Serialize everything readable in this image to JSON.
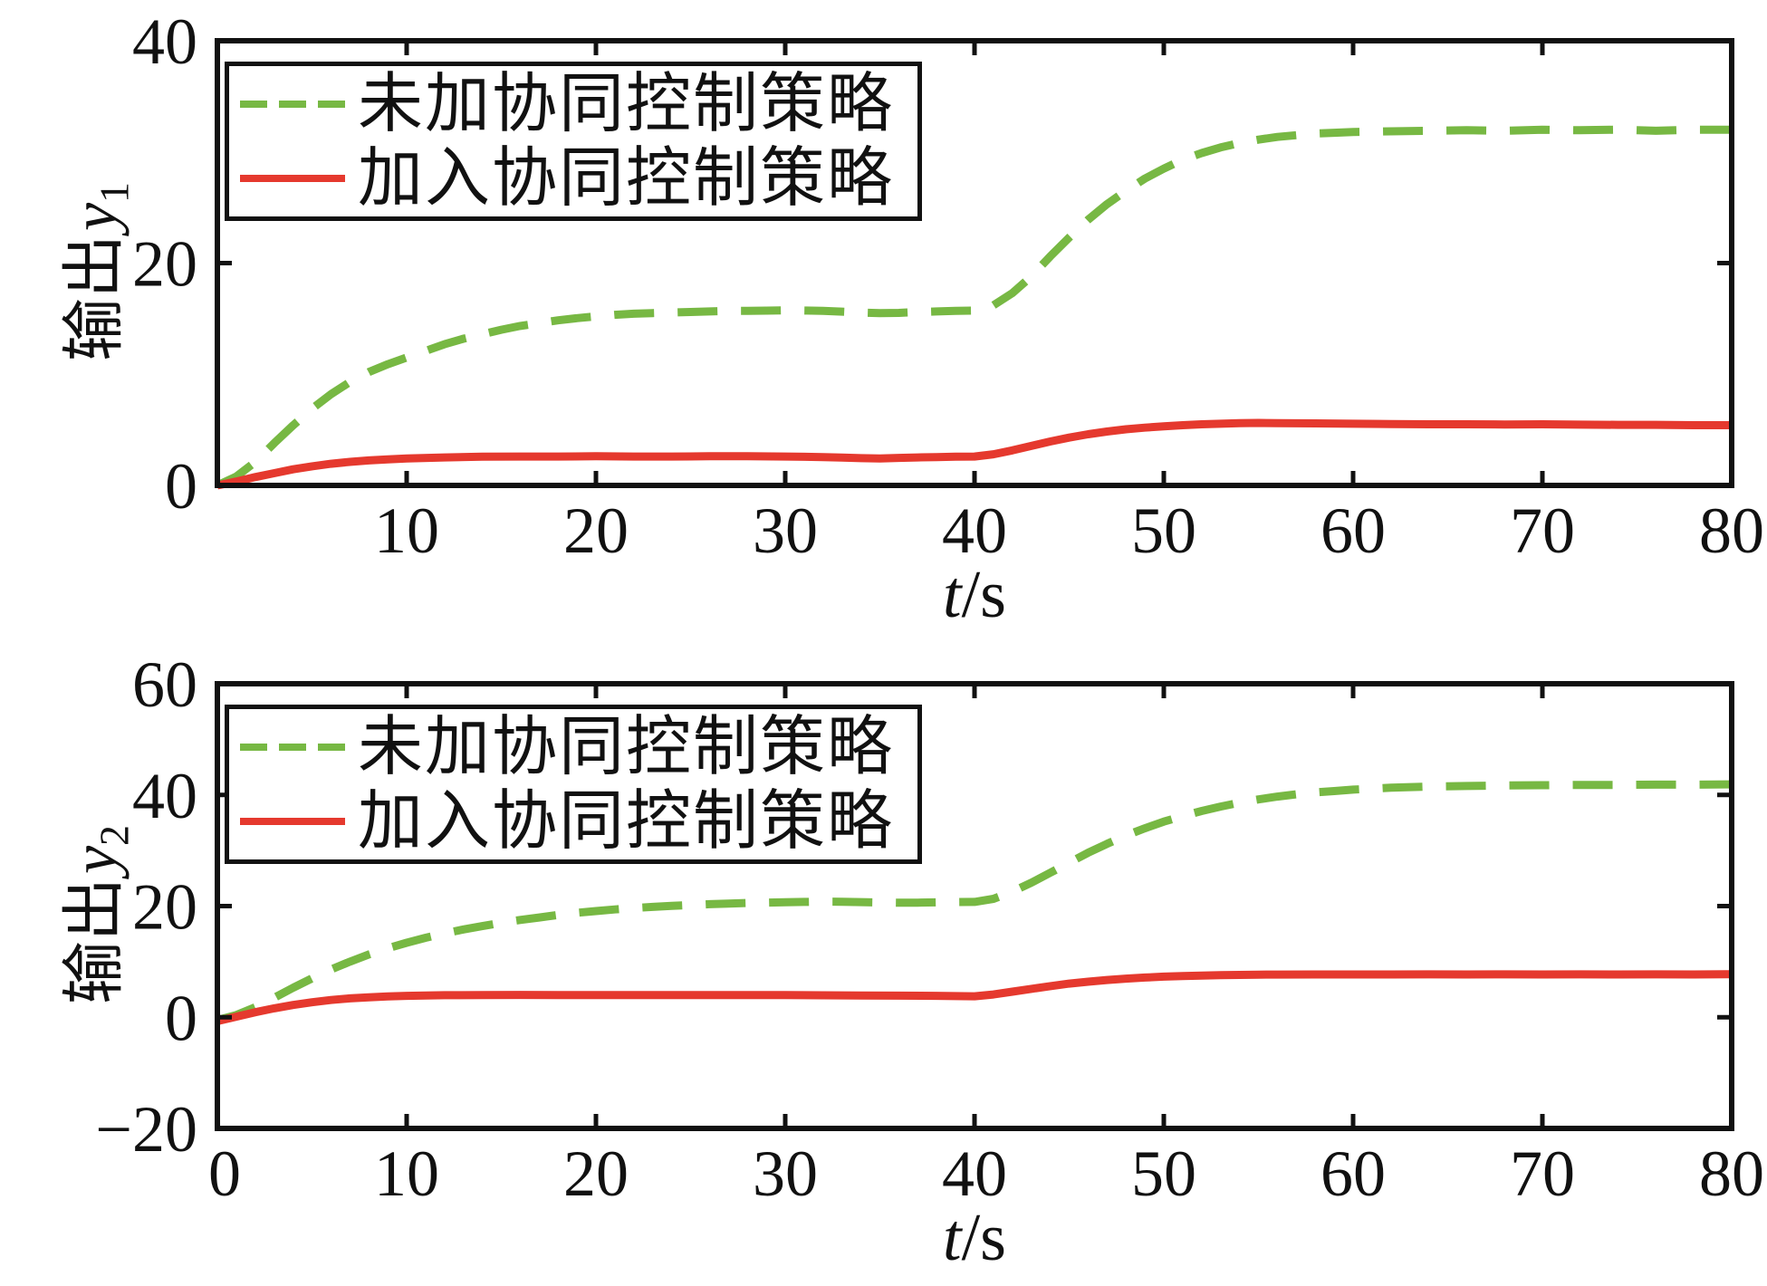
{
  "figure": {
    "background": "#ffffff"
  },
  "colors": {
    "series_green": "#77b843",
    "series_red": "#e5392e",
    "axis": "#111111",
    "legend_border": "#111111"
  },
  "legend": {
    "position": "upper-left",
    "items": [
      {
        "label": "未加协同控制策略",
        "line_style": "dashed",
        "color": "#77b843"
      },
      {
        "label": "加入协同控制策略",
        "line_style": "solid",
        "color": "#e5392e"
      }
    ]
  },
  "chart_data": [
    {
      "type": "line",
      "title": "",
      "xlabel_var": "t",
      "xlabel_unit": "/s",
      "ylabel_text": "输出",
      "ylabel_var": "y",
      "ylabel_sub": "1",
      "xlim": [
        0,
        80
      ],
      "ylim": [
        0,
        40
      ],
      "grid": false,
      "legend_position": "upper-left",
      "xticks": [
        0,
        10,
        20,
        30,
        40,
        50,
        60,
        70,
        80
      ],
      "xtick_labels": [
        "",
        "10",
        "20",
        "30",
        "40",
        "50",
        "60",
        "70",
        "80"
      ],
      "yticks": [
        0,
        20,
        40
      ],
      "ytick_labels": [
        "0",
        "20",
        "40"
      ],
      "series": [
        {
          "name": "未加协同控制策略",
          "style": "dashed",
          "color": "#77b843",
          "points": [
            [
              0,
              0
            ],
            [
              1,
              0.8
            ],
            [
              2,
              2.1
            ],
            [
              3,
              3.8
            ],
            [
              4,
              5.4
            ],
            [
              5,
              6.9
            ],
            [
              6,
              8.2
            ],
            [
              7,
              9.3
            ],
            [
              8,
              10.2
            ],
            [
              9,
              10.9
            ],
            [
              10,
              11.5
            ],
            [
              11,
              12.1
            ],
            [
              12,
              12.7
            ],
            [
              13,
              13.2
            ],
            [
              14,
              13.6
            ],
            [
              15,
              14.0
            ],
            [
              16,
              14.35
            ],
            [
              17,
              14.6
            ],
            [
              18,
              14.85
            ],
            [
              19,
              15.05
            ],
            [
              20,
              15.2
            ],
            [
              21,
              15.35
            ],
            [
              22,
              15.45
            ],
            [
              23,
              15.5
            ],
            [
              24,
              15.55
            ],
            [
              25,
              15.6
            ],
            [
              26,
              15.65
            ],
            [
              27,
              15.7
            ],
            [
              28,
              15.7
            ],
            [
              29,
              15.72
            ],
            [
              30,
              15.75
            ],
            [
              31,
              15.73
            ],
            [
              32,
              15.7
            ],
            [
              33,
              15.63
            ],
            [
              34,
              15.55
            ],
            [
              35,
              15.5
            ],
            [
              36,
              15.52
            ],
            [
              37,
              15.6
            ],
            [
              38,
              15.65
            ],
            [
              39,
              15.7
            ],
            [
              40,
              15.72
            ],
            [
              40.5,
              15.85
            ],
            [
              41,
              16.2
            ],
            [
              42,
              17.3
            ],
            [
              43,
              18.8
            ],
            [
              44,
              20.6
            ],
            [
              45,
              22.3
            ],
            [
              46,
              23.9
            ],
            [
              47,
              25.3
            ],
            [
              48,
              26.5
            ],
            [
              49,
              27.6
            ],
            [
              50,
              28.5
            ],
            [
              51,
              29.3
            ],
            [
              52,
              29.9
            ],
            [
              53,
              30.4
            ],
            [
              54,
              30.8
            ],
            [
              55,
              31.1
            ],
            [
              56,
              31.35
            ],
            [
              57,
              31.5
            ],
            [
              58,
              31.65
            ],
            [
              59,
              31.72
            ],
            [
              60,
              31.8
            ],
            [
              62,
              31.85
            ],
            [
              64,
              31.9
            ],
            [
              66,
              31.95
            ],
            [
              68,
              31.9
            ],
            [
              70,
              32.0
            ],
            [
              72,
              31.95
            ],
            [
              74,
              32.0
            ],
            [
              76,
              31.9
            ],
            [
              78,
              32.0
            ],
            [
              80,
              32.0
            ]
          ]
        },
        {
          "name": "加入协同控制策略",
          "style": "solid",
          "color": "#e5392e",
          "points": [
            [
              0,
              0
            ],
            [
              1,
              0.35
            ],
            [
              2,
              0.75
            ],
            [
              3,
              1.1
            ],
            [
              4,
              1.45
            ],
            [
              5,
              1.72
            ],
            [
              6,
              1.95
            ],
            [
              7,
              2.12
            ],
            [
              8,
              2.25
            ],
            [
              9,
              2.35
            ],
            [
              10,
              2.42
            ],
            [
              12,
              2.52
            ],
            [
              14,
              2.58
            ],
            [
              16,
              2.6
            ],
            [
              18,
              2.6
            ],
            [
              20,
              2.62
            ],
            [
              22,
              2.6
            ],
            [
              24,
              2.6
            ],
            [
              26,
              2.62
            ],
            [
              28,
              2.63
            ],
            [
              30,
              2.6
            ],
            [
              32,
              2.55
            ],
            [
              33,
              2.5
            ],
            [
              34,
              2.45
            ],
            [
              35,
              2.42
            ],
            [
              36,
              2.48
            ],
            [
              37,
              2.52
            ],
            [
              38,
              2.55
            ],
            [
              39,
              2.58
            ],
            [
              40,
              2.6
            ],
            [
              41,
              2.8
            ],
            [
              42,
              3.15
            ],
            [
              43,
              3.55
            ],
            [
              44,
              3.95
            ],
            [
              45,
              4.3
            ],
            [
              46,
              4.6
            ],
            [
              47,
              4.85
            ],
            [
              48,
              5.05
            ],
            [
              49,
              5.2
            ],
            [
              50,
              5.32
            ],
            [
              51,
              5.42
            ],
            [
              52,
              5.5
            ],
            [
              53,
              5.55
            ],
            [
              54,
              5.6
            ],
            [
              55,
              5.62
            ],
            [
              56,
              5.6
            ],
            [
              58,
              5.58
            ],
            [
              60,
              5.55
            ],
            [
              62,
              5.52
            ],
            [
              64,
              5.5
            ],
            [
              66,
              5.5
            ],
            [
              68,
              5.48
            ],
            [
              70,
              5.5
            ],
            [
              72,
              5.47
            ],
            [
              74,
              5.45
            ],
            [
              76,
              5.45
            ],
            [
              78,
              5.42
            ],
            [
              80,
              5.42
            ]
          ]
        }
      ]
    },
    {
      "type": "line",
      "title": "",
      "xlabel_var": "t",
      "xlabel_unit": "/s",
      "ylabel_text": "输出",
      "ylabel_var": "y",
      "ylabel_sub": "2",
      "xlim": [
        0,
        80
      ],
      "ylim": [
        -20,
        60
      ],
      "grid": false,
      "legend_position": "upper-left",
      "xticks": [
        0,
        10,
        20,
        30,
        40,
        50,
        60,
        70,
        80
      ],
      "xtick_labels": [
        "0",
        "10",
        "20",
        "30",
        "40",
        "50",
        "60",
        "70",
        "80"
      ],
      "yticks": [
        -20,
        0,
        20,
        40,
        60
      ],
      "ytick_labels": [
        "−20",
        "0",
        "20",
        "40",
        "60"
      ],
      "series": [
        {
          "name": "未加协同控制策略",
          "style": "dashed",
          "color": "#77b843",
          "points": [
            [
              0,
              -0.5
            ],
            [
              1,
              0.4
            ],
            [
              2,
              1.8
            ],
            [
              3,
              3.5
            ],
            [
              4,
              5.3
            ],
            [
              5,
              7.0
            ],
            [
              6,
              8.6
            ],
            [
              7,
              10.0
            ],
            [
              8,
              11.3
            ],
            [
              9,
              12.4
            ],
            [
              10,
              13.4
            ],
            [
              11,
              14.3
            ],
            [
              12,
              15.1
            ],
            [
              13,
              15.8
            ],
            [
              14,
              16.4
            ],
            [
              15,
              17.0
            ],
            [
              16,
              17.5
            ],
            [
              17,
              17.95
            ],
            [
              18,
              18.4
            ],
            [
              19,
              18.8
            ],
            [
              20,
              19.1
            ],
            [
              21,
              19.4
            ],
            [
              22,
              19.65
            ],
            [
              23,
              19.85
            ],
            [
              24,
              20.05
            ],
            [
              25,
              20.2
            ],
            [
              26,
              20.35
            ],
            [
              27,
              20.45
            ],
            [
              28,
              20.55
            ],
            [
              29,
              20.62
            ],
            [
              30,
              20.7
            ],
            [
              31,
              20.75
            ],
            [
              32,
              20.8
            ],
            [
              33,
              20.78
            ],
            [
              34,
              20.72
            ],
            [
              35,
              20.65
            ],
            [
              36,
              20.6
            ],
            [
              37,
              20.62
            ],
            [
              38,
              20.68
            ],
            [
              39,
              20.72
            ],
            [
              40,
              20.75
            ],
            [
              41,
              21.3
            ],
            [
              42,
              22.6
            ],
            [
              43,
              24.2
            ],
            [
              44,
              26.0
            ],
            [
              45,
              27.8
            ],
            [
              46,
              29.6
            ],
            [
              47,
              31.2
            ],
            [
              48,
              32.7
            ],
            [
              49,
              34.0
            ],
            [
              50,
              35.2
            ],
            [
              51,
              36.2
            ],
            [
              52,
              37.1
            ],
            [
              53,
              37.9
            ],
            [
              54,
              38.6
            ],
            [
              55,
              39.2
            ],
            [
              56,
              39.7
            ],
            [
              57,
              40.1
            ],
            [
              58,
              40.45
            ],
            [
              59,
              40.7
            ],
            [
              60,
              40.95
            ],
            [
              62,
              41.3
            ],
            [
              64,
              41.5
            ],
            [
              66,
              41.6
            ],
            [
              68,
              41.7
            ],
            [
              70,
              41.75
            ],
            [
              72,
              41.8
            ],
            [
              74,
              41.8
            ],
            [
              76,
              41.85
            ],
            [
              78,
              41.85
            ],
            [
              80,
              41.9
            ]
          ]
        },
        {
          "name": "加入协同控制策略",
          "style": "solid",
          "color": "#e5392e",
          "points": [
            [
              0,
              -0.7
            ],
            [
              1,
              0.1
            ],
            [
              2,
              0.9
            ],
            [
              3,
              1.6
            ],
            [
              4,
              2.2
            ],
            [
              5,
              2.7
            ],
            [
              6,
              3.1
            ],
            [
              7,
              3.4
            ],
            [
              8,
              3.6
            ],
            [
              9,
              3.75
            ],
            [
              10,
              3.85
            ],
            [
              11,
              3.92
            ],
            [
              12,
              3.97
            ],
            [
              14,
              4.0
            ],
            [
              16,
              4.02
            ],
            [
              18,
              4.0
            ],
            [
              20,
              4.0
            ],
            [
              22,
              4.0
            ],
            [
              24,
              4.0
            ],
            [
              26,
              4.0
            ],
            [
              28,
              4.0
            ],
            [
              30,
              3.98
            ],
            [
              32,
              3.95
            ],
            [
              34,
              3.9
            ],
            [
              36,
              3.88
            ],
            [
              38,
              3.85
            ],
            [
              39,
              3.8
            ],
            [
              40,
              3.78
            ],
            [
              41,
              4.1
            ],
            [
              42,
              4.6
            ],
            [
              43,
              5.1
            ],
            [
              44,
              5.6
            ],
            [
              45,
              6.05
            ],
            [
              46,
              6.4
            ],
            [
              47,
              6.7
            ],
            [
              48,
              6.95
            ],
            [
              49,
              7.15
            ],
            [
              50,
              7.3
            ],
            [
              51,
              7.42
            ],
            [
              52,
              7.5
            ],
            [
              53,
              7.57
            ],
            [
              54,
              7.62
            ],
            [
              55,
              7.66
            ],
            [
              56,
              7.68
            ],
            [
              58,
              7.7
            ],
            [
              60,
              7.7
            ],
            [
              62,
              7.7
            ],
            [
              64,
              7.72
            ],
            [
              66,
              7.7
            ],
            [
              68,
              7.72
            ],
            [
              70,
              7.7
            ],
            [
              72,
              7.72
            ],
            [
              74,
              7.7
            ],
            [
              76,
              7.72
            ],
            [
              78,
              7.7
            ],
            [
              80,
              7.75
            ]
          ]
        }
      ]
    }
  ]
}
